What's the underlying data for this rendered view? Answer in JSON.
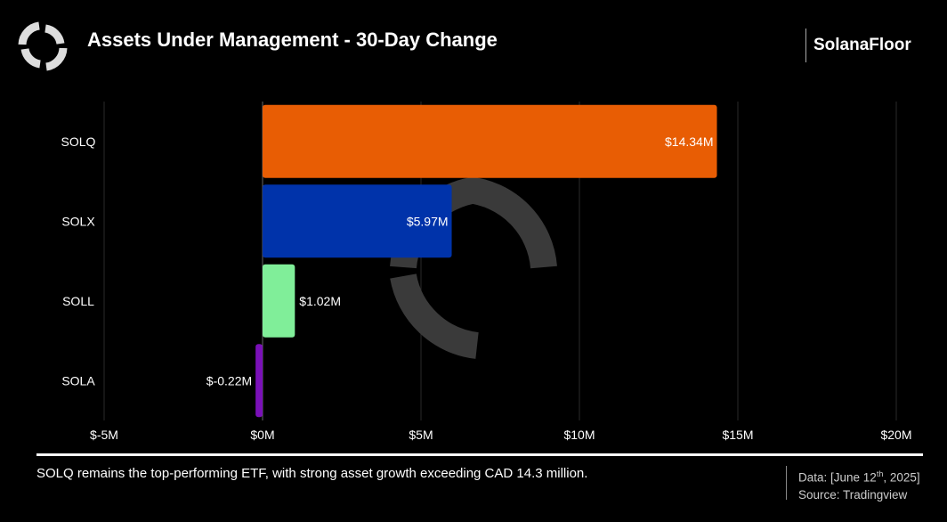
{
  "header": {
    "title": "Assets Under Management - 30-Day Change",
    "brand": "SolanaFloor"
  },
  "footer": {
    "caption": "SOLQ remains the top-performing ETF, with strong asset growth exceeding CAD 14.3 million.",
    "data_prefix": "Data: [June 12",
    "data_sup": "th",
    "data_suffix": ", 2025]",
    "source": "Source: Tradingview"
  },
  "chart_data": {
    "type": "bar",
    "orientation": "horizontal",
    "title": "Assets Under Management - 30-Day Change",
    "categories": [
      "SOLQ",
      "SOLX",
      "SOLL",
      "SOLA"
    ],
    "values": [
      14.34,
      5.97,
      1.02,
      -0.22
    ],
    "labels": [
      "$14.34M",
      "$5.97M",
      "$1.02M",
      "$-0.22M"
    ],
    "colors": [
      "#e85d04",
      "#0033aa",
      "#80ee99",
      "#7a10b8"
    ],
    "xlim": [
      -5,
      20
    ],
    "xticks": [
      -5,
      0,
      5,
      10,
      15,
      20
    ],
    "xtick_labels": [
      "$-5M",
      "$0M",
      "$5M",
      "$10M",
      "$15M",
      "$20M"
    ],
    "unit": "M",
    "grid": true
  }
}
